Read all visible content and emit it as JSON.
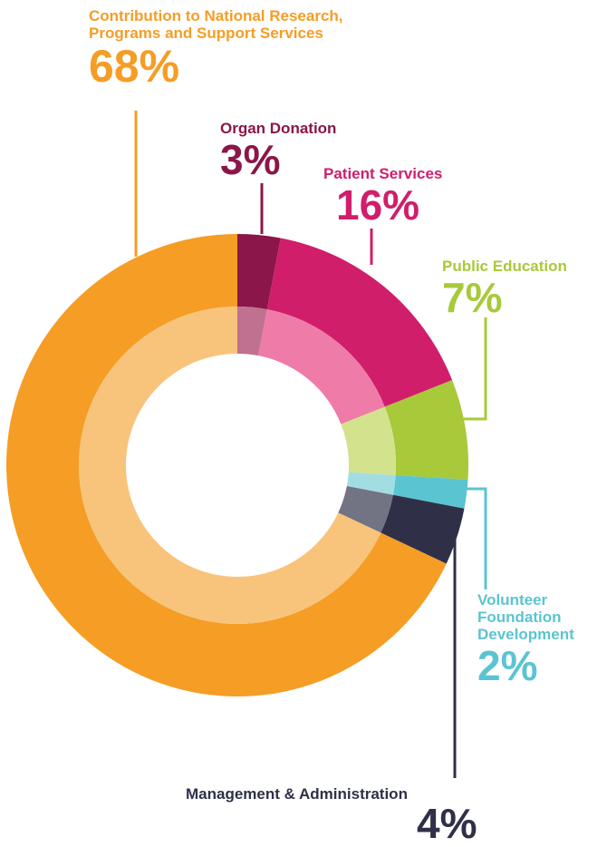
{
  "chart_data": {
    "type": "pie",
    "slices": [
      {
        "label": "Organ Donation",
        "value": 3,
        "value_label": "3%",
        "color": "#8b1649",
        "inner_color": "#c0718f"
      },
      {
        "label": "Patient Services",
        "value": 16,
        "value_label": "16%",
        "color": "#d01e6b",
        "inner_color": "#ef7ba8"
      },
      {
        "label": "Public Education",
        "value": 7,
        "value_label": "7%",
        "color": "#a8c93a",
        "inner_color": "#d3e28c"
      },
      {
        "label": "Volunteer Foundation Development",
        "value": 2,
        "value_label": "2%",
        "color": "#5bc4d1",
        "inner_color": "#a2dde4"
      },
      {
        "label": "Management & Administration",
        "value": 4,
        "value_label": "4%",
        "color": "#2f3048",
        "inner_color": "#727383"
      },
      {
        "label": "Contribution to National Research, Programs and Support Services",
        "value": 68,
        "value_label": "68%",
        "color": "#f59d25",
        "inner_color": "#f8c47b"
      }
    ]
  },
  "labels": {
    "contribution": {
      "line1": "Contribution to National Research,",
      "line2": "Programs and Support Services",
      "pct": "68%"
    },
    "organ": {
      "name": "Organ Donation",
      "pct": "3%"
    },
    "patient": {
      "name": "Patient Services",
      "pct": "16%"
    },
    "education": {
      "name": "Public Education",
      "pct": "7%"
    },
    "volunteer": {
      "line1": "Volunteer",
      "line2": "Foundation",
      "line3": "Development",
      "pct": "2%"
    },
    "management": {
      "name": "Management & Administration",
      "pct": "4%"
    }
  }
}
